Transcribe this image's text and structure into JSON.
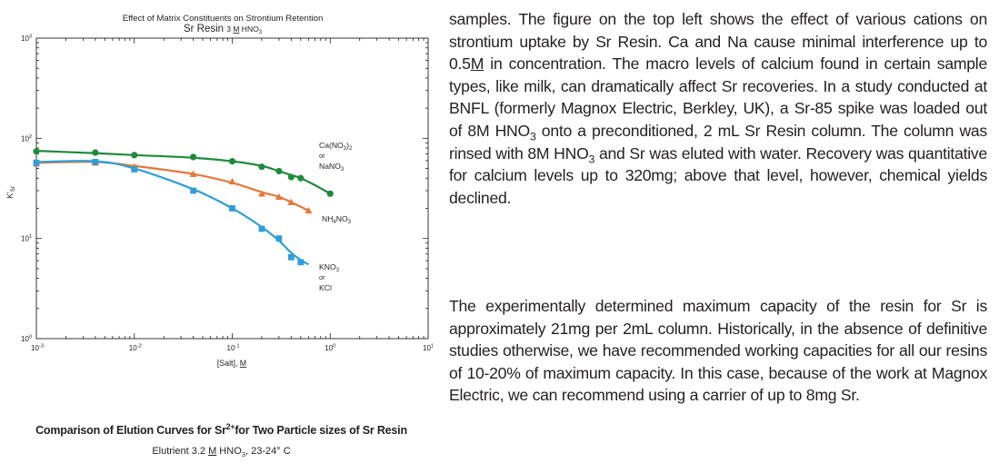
{
  "chart_data": {
    "type": "scatter",
    "title": "Effect of Matrix Constituents on Strontium Retention",
    "subtitle_main": "Sr Resin ",
    "subtitle_conc": "3 ",
    "subtitle_m": "M",
    "subtitle_hno": " HNO",
    "subtitle_sub": "3",
    "xscale": "log",
    "yscale": "log",
    "xlim": [
      0.001,
      10
    ],
    "ylim": [
      1,
      1000
    ],
    "xlabel_main": "[Salt], ",
    "xlabel_m": "M",
    "ylabel_main": "K'",
    "ylabel_sub": "Sr",
    "grid": false,
    "xticks": [
      {
        "base": "10",
        "exp": "-3"
      },
      {
        "base": "10",
        "exp": "-2"
      },
      {
        "base": "10",
        "exp": "-1"
      },
      {
        "base": "10",
        "exp": "0"
      },
      {
        "base": "10",
        "exp": "1"
      }
    ],
    "yticks": [
      {
        "base": "10",
        "exp": "0"
      },
      {
        "base": "10",
        "exp": "1"
      },
      {
        "base": "10",
        "exp": "2"
      },
      {
        "base": "10",
        "exp": "3"
      }
    ],
    "series": [
      {
        "name": "Ca(NO3)2 or NaNO3",
        "label_line1": "Ca(NO",
        "label_sub1": "3",
        "label_close": ")",
        "label_sub2": "2",
        "label_or": "or",
        "label_line3": "NaNO",
        "label_sub3": "3",
        "color": "#1f8a3c",
        "marker": "circle",
        "x": [
          0.001,
          0.004,
          0.01,
          0.04,
          0.1,
          0.2,
          0.3,
          0.4,
          0.5,
          1.0
        ],
        "y": [
          74,
          72,
          68,
          65,
          59,
          52,
          47,
          41,
          40,
          28
        ],
        "curve_x": [
          0.001,
          0.004,
          0.01,
          0.04,
          0.1,
          0.2,
          0.3,
          0.4,
          0.5,
          0.7,
          1.0
        ],
        "curve_y": [
          75,
          71,
          68,
          64,
          59,
          53,
          47,
          43,
          40,
          34,
          28
        ]
      },
      {
        "name": "NH4NO3",
        "label_line1": "NH",
        "label_sub1": "4",
        "label_rest": "NO",
        "label_sub2": "3",
        "color": "#e8763a",
        "marker": "triangle",
        "x": [
          0.001,
          0.004,
          0.01,
          0.04,
          0.1,
          0.2,
          0.3,
          0.4,
          0.6
        ],
        "y": [
          56,
          57,
          52,
          44,
          37,
          28,
          26,
          23,
          19
        ],
        "curve_x": [
          0.001,
          0.004,
          0.01,
          0.04,
          0.1,
          0.2,
          0.3,
          0.4,
          0.6
        ],
        "curve_y": [
          57,
          58,
          53,
          44,
          36,
          29,
          26,
          23,
          19
        ]
      },
      {
        "name": "KNO3 or KCl",
        "label_line1": "KNO",
        "label_sub1": "3",
        "label_or": "or",
        "label_line3": "KCl",
        "color": "#2f9ed8",
        "marker": "square",
        "x": [
          0.001,
          0.004,
          0.01,
          0.04,
          0.1,
          0.2,
          0.3,
          0.4,
          0.5
        ],
        "y": [
          57,
          58,
          49,
          30,
          20,
          12.5,
          10,
          6.5,
          5.8
        ],
        "curve_x": [
          0.001,
          0.004,
          0.01,
          0.04,
          0.1,
          0.2,
          0.3,
          0.4,
          0.5,
          0.6
        ],
        "curve_y": [
          58,
          59,
          50,
          31,
          20,
          13,
          9.5,
          7.2,
          6.1,
          5.5
        ]
      }
    ]
  },
  "para1": {
    "t1": "samples. The figure on the top left shows the effect of various cations on strontium uptake by Sr Resin. Ca and Na cause minimal interference up to 0.5",
    "t1m": "M",
    "t2": " in concentration. The macro levels of calcium found in certain sample types, like milk, can dramatically affect Sr recoveries. In a study conducted at BNFL (formerly Magnox Electric, Berkley, UK), a Sr-85 spike was loaded out of 8M HNO",
    "t2s": "3",
    "t3": " onto a preconditioned, 2 mL Sr Resin column. The column was rinsed with 8M HNO",
    "t3s": "3",
    "t4": " and Sr was eluted with water. Recovery was quantitative for calcium levels up to 320mg; above that level, however, chemical yields declined."
  },
  "para2": {
    "text": "The experimentally determined maximum capacity of the resin for Sr is approximately 21mg per 2mL column.  Historically, in the absence of definitive studies otherwise, we have recommended working capacities for all our resins of 10-20% of maximum capacity. In this case, because of the work at Magnox Electric, we can recommend using a carrier of up to 8mg Sr."
  },
  "caption": {
    "t1": "Comparison of Elution Curves for Sr",
    "t1sup": "2+",
    "t2": "for Two Particle sizes of Sr Resin",
    "s1": "Elutrient 3.2 ",
    "s1m": "M",
    "s2": " HNO",
    "s2sub": "3",
    "s3": ", 23-24° C"
  }
}
